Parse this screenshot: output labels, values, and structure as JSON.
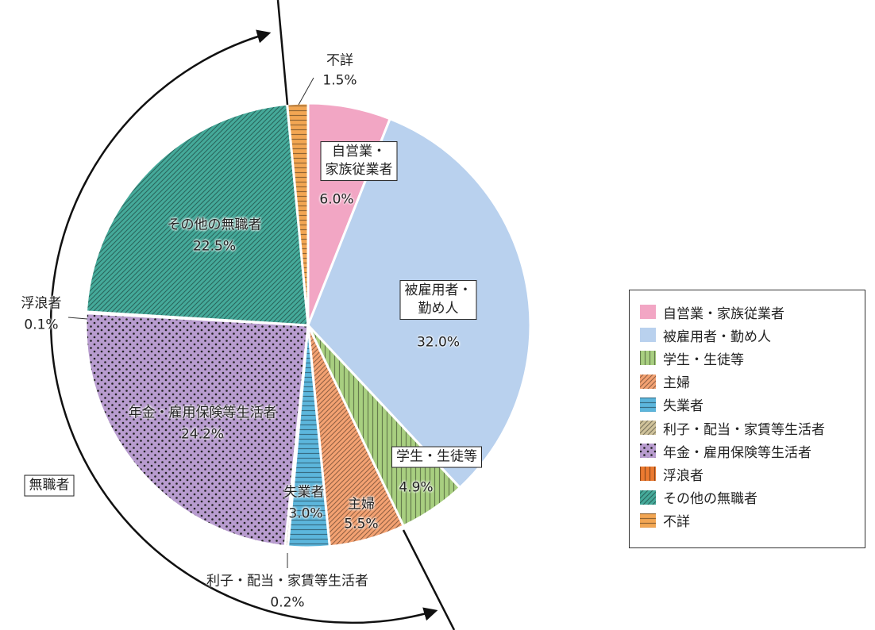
{
  "chart_data": {
    "type": "pie",
    "categories": [
      "自営業・家族従業者",
      "被雇用者・勤め人",
      "学生・生徒等",
      "主婦",
      "失業者",
      "利子・配当・家賃等生活者",
      "年金・雇用保険等生活者",
      "浮浪者",
      "その他の無職者",
      "不詳"
    ],
    "values": [
      6.0,
      32.0,
      4.9,
      5.5,
      3.0,
      0.2,
      24.2,
      0.1,
      22.5,
      1.5
    ],
    "value_labels": [
      "6.0%",
      "32.0%",
      "4.9%",
      "5.5%",
      "3.0%",
      "0.2%",
      "24.2%",
      "0.1%",
      "22.5%",
      "1.5%"
    ],
    "colors": [
      "#f2a6c4",
      "#b9d1ee",
      "#a8cf80",
      "#f4a272",
      "#5cb6dc",
      "#cfc29a",
      "#b89ccf",
      "#ec7a30",
      "#45aa9a",
      "#f2a653"
    ],
    "annotation": "無職者",
    "legend": "right"
  }
}
